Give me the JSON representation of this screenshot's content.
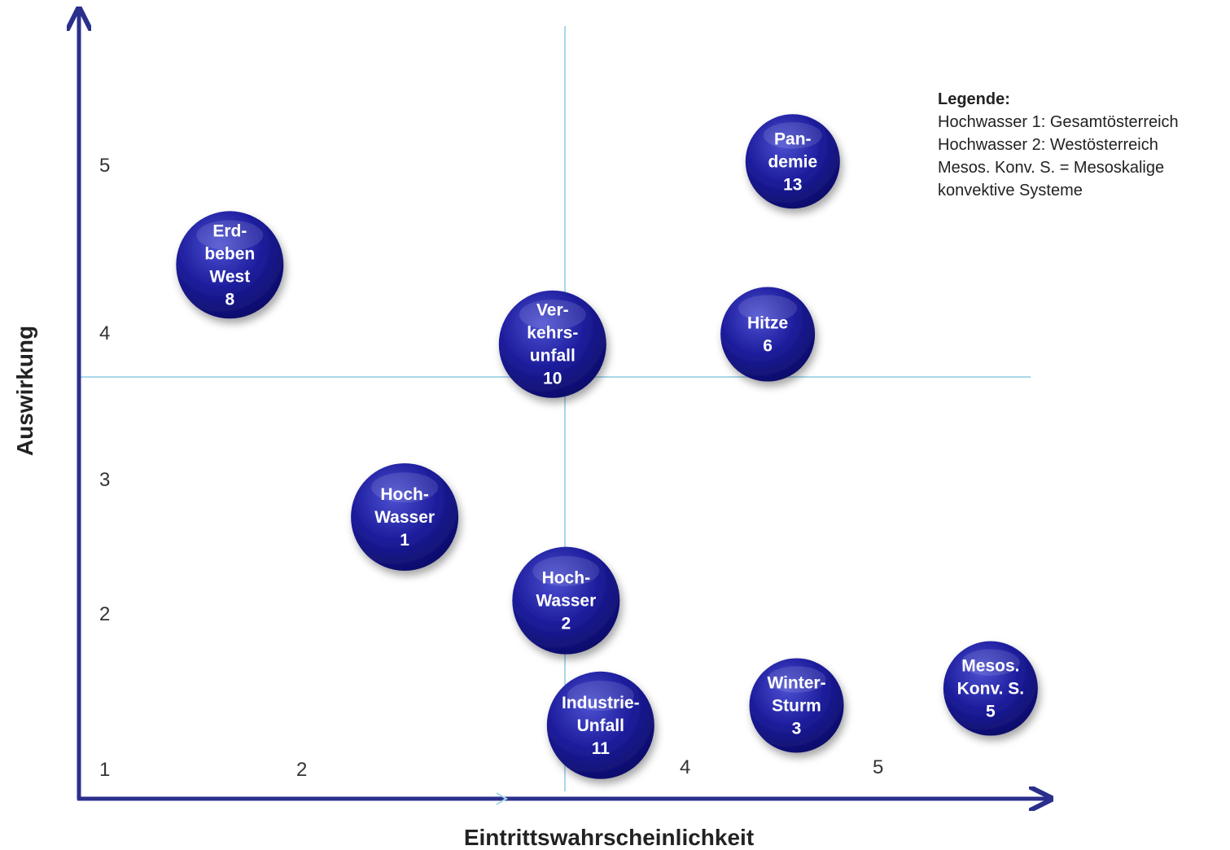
{
  "chart_data": {
    "type": "scatter",
    "xlabel": "Eintrittswahrscheinlichkeit",
    "ylabel": "Auswirkung",
    "x_tick_labels": [
      "1",
      "2",
      "4",
      "5"
    ],
    "y_tick_labels": [
      "1",
      "2",
      "3",
      "4",
      "5"
    ],
    "points": [
      {
        "lines": [
          "Erd-",
          "beben",
          "West",
          "8"
        ],
        "x": 1.62,
        "y": 4.55,
        "size": "large"
      },
      {
        "lines": [
          "Pan-",
          "demie",
          "13"
        ],
        "x": 4.55,
        "y": 5.28,
        "size": "medium"
      },
      {
        "lines": [
          "Ver-",
          "kehrs-",
          "unfall",
          "10"
        ],
        "x": 3.3,
        "y": 3.99,
        "size": "large"
      },
      {
        "lines": [
          "Hitze",
          "6"
        ],
        "x": 4.42,
        "y": 4.06,
        "size": "medium"
      },
      {
        "lines": [
          "Hoch-",
          "Wasser",
          "1"
        ],
        "x": 2.53,
        "y": 2.77,
        "size": "large"
      },
      {
        "lines": [
          "Hoch-",
          "Wasser",
          "2"
        ],
        "x": 3.37,
        "y": 2.18,
        "size": "large"
      },
      {
        "lines": [
          "Industrie-",
          "Unfall",
          "11"
        ],
        "x": 3.55,
        "y": 1.3,
        "size": "large"
      },
      {
        "lines": [
          "Winter-",
          "Sturm",
          "3"
        ],
        "x": 4.57,
        "y": 1.44,
        "size": "medium"
      },
      {
        "lines": [
          "Mesos.",
          "Konv. S.",
          "5"
        ],
        "x": 5.58,
        "y": 1.56,
        "size": "medium"
      }
    ],
    "legend": {
      "title": "Legende:",
      "entries": [
        "Hochwasser  1: Gesamtösterreich",
        "Hochwasser  2: Westösterreich",
        "Mesos. Konv. S. = Mesoskalige",
        "konvektive Systeme"
      ]
    },
    "colors": {
      "axis": "#2b2f8c",
      "bubble": "#1c1c9a",
      "quadrant_lines": "#a8d8ea"
    }
  }
}
